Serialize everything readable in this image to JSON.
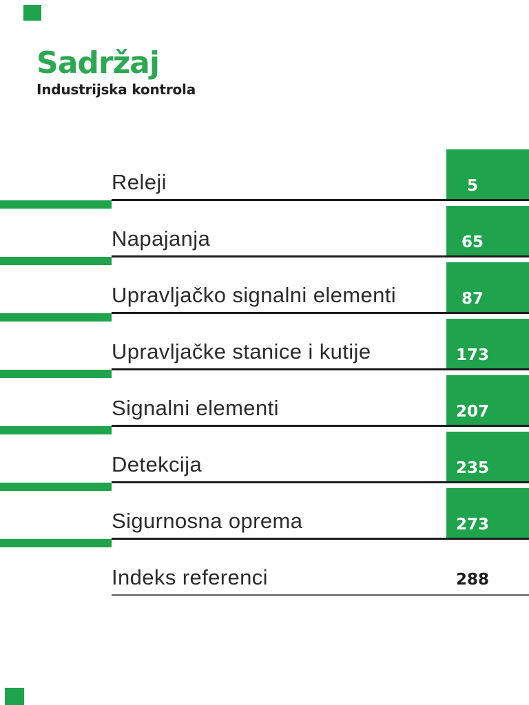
{
  "header": {
    "title": "Sadržaj",
    "subtitle": "Industrijska kontrola"
  },
  "colors": {
    "green": "#1fa34c",
    "title_green": "#2ca853",
    "rule_dark": "#1c1c1c",
    "rule_gray": "#7b7b7b",
    "text": "#2b2b2b"
  },
  "toc": {
    "entries": [
      {
        "label": "Releji",
        "page": "5",
        "highlighted": true
      },
      {
        "label": "Napajanja",
        "page": "65",
        "highlighted": true
      },
      {
        "label": "Upravljačko signalni elementi",
        "page": "87",
        "highlighted": true
      },
      {
        "label": "Upravljačke stanice i kutije",
        "page": "173",
        "highlighted": true
      },
      {
        "label": "Signalni elementi",
        "page": "207",
        "highlighted": true
      },
      {
        "label": "Detekcija",
        "page": "235",
        "highlighted": true
      },
      {
        "label": "Sigurnosna oprema",
        "page": "273",
        "highlighted": true
      },
      {
        "label": "Indeks referenci",
        "page": "288",
        "highlighted": false
      }
    ]
  }
}
